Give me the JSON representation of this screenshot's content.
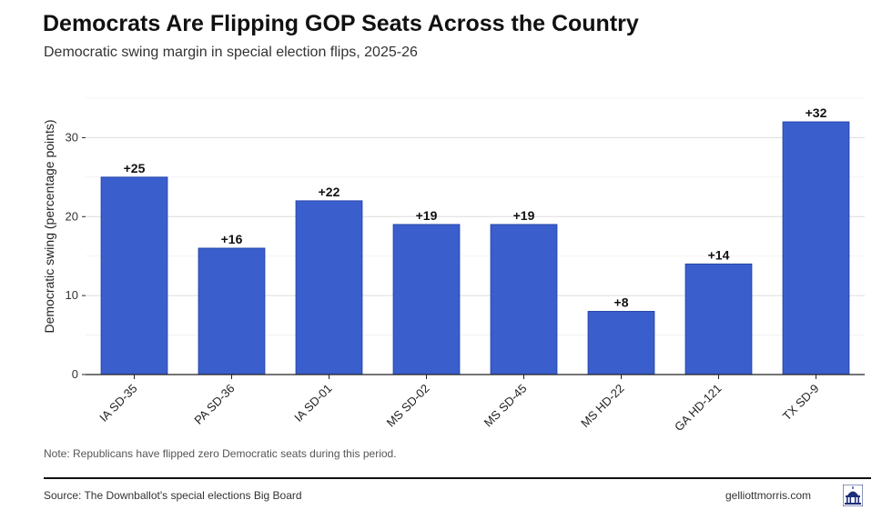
{
  "header": {
    "title": "Democrats Are Flipping GOP Seats Across the Country",
    "subtitle": "Democratic swing margin in special election flips, 2025-26"
  },
  "footer": {
    "note": "Note: Republicans have flipped zero Democratic seats during this period.",
    "source": "Source: The Downballot's special elections Big Board",
    "site": "gelliottmorris.com",
    "logo_icon": "capitol-building-icon"
  },
  "colors": {
    "bar": "#3a5fcd",
    "bar_stroke": "#2746a8",
    "grid": "#dcdcdc",
    "axis": "#222222"
  },
  "chart_data": {
    "type": "bar",
    "title": "Democrats Are Flipping GOP Seats Across the Country",
    "subtitle": "Democratic swing margin in special election flips, 2025-26",
    "xlabel": "",
    "ylabel": "Democratic swing (percentage points)",
    "categories": [
      "IA SD-35",
      "PA SD-36",
      "IA SD-01",
      "MS SD-02",
      "MS SD-45",
      "MS HD-22",
      "GA HD-121",
      "TX SD-9"
    ],
    "values": [
      25,
      16,
      22,
      19,
      19,
      8,
      14,
      32
    ],
    "data_labels": [
      "+25",
      "+16",
      "+22",
      "+19",
      "+19",
      "+8",
      "+14",
      "+32"
    ],
    "yticks": [
      0,
      10,
      20,
      30
    ],
    "ylim": [
      0,
      35
    ],
    "grid": true,
    "legend": "none"
  }
}
